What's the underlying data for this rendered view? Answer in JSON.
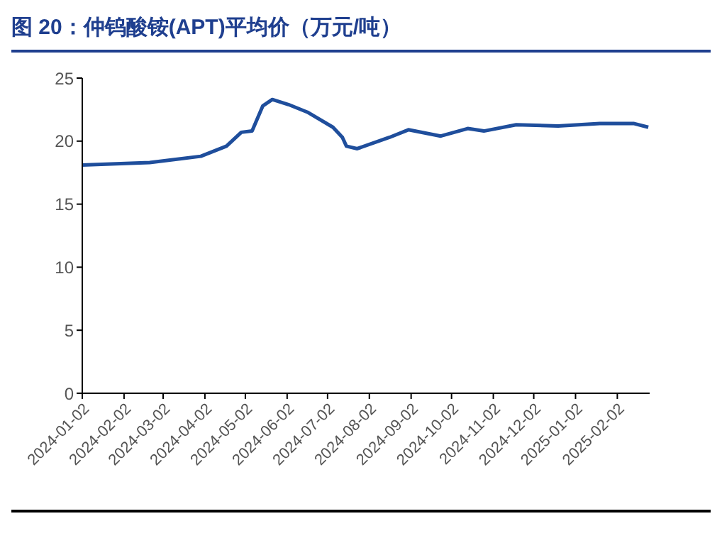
{
  "chart_data": {
    "type": "line",
    "title": "图 20：仲钨酸铵(APT)平均价（万元/吨）",
    "x": [
      "2024-01-02",
      "2024-02-21",
      "2024-03-30",
      "2024-04-18",
      "2024-04-29",
      "2024-05-07",
      "2024-05-15",
      "2024-05-22",
      "2024-06-03",
      "2024-06-17",
      "2024-07-06",
      "2024-07-13",
      "2024-07-16",
      "2024-07-24",
      "2024-08-17",
      "2024-08-31",
      "2024-09-24",
      "2024-10-14",
      "2024-10-26",
      "2024-11-19",
      "2024-12-20",
      "2025-01-20",
      "2025-02-14",
      "2025-02-25"
    ],
    "series": [
      {
        "color": "#1f4e9c",
        "values": [
          18.1,
          18.3,
          18.8,
          19.6,
          20.7,
          20.8,
          22.8,
          23.3,
          22.9,
          22.3,
          21.1,
          20.3,
          19.6,
          19.4,
          20.3,
          20.9,
          20.4,
          21.0,
          20.8,
          21.3,
          21.2,
          21.4,
          21.4,
          21.1
        ]
      }
    ],
    "xlim": [
      "2024-01-02",
      "2025-02-26"
    ],
    "xticks": [
      "2024-01-02",
      "2024-02-02",
      "2024-03-02",
      "2024-04-02",
      "2024-05-02",
      "2024-06-02",
      "2024-07-02",
      "2024-08-02",
      "2024-09-02",
      "2024-10-02",
      "2024-11-02",
      "2024-12-02",
      "2025-01-02",
      "2025-02-02"
    ],
    "ylim": [
      0,
      25
    ],
    "yticks": [
      0,
      5,
      10,
      15,
      20,
      25
    ],
    "grid": false,
    "legend": false,
    "marker": "none",
    "line_style": "solid"
  }
}
